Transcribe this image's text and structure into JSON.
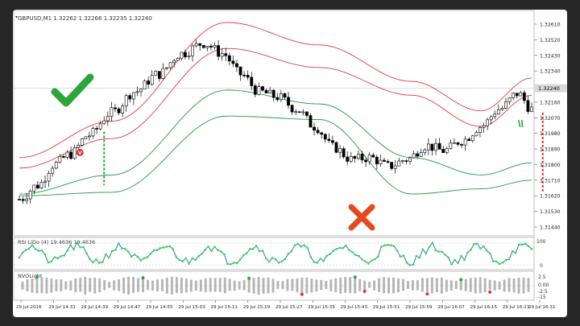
{
  "chart": {
    "symbol_title": "GBPUSD,M1  1.32262 1.32266 1.32235 1.32240",
    "current_price": "1.32240",
    "price_ticks": [
      "1.32610",
      "1.32520",
      "1.32430",
      "1.32340",
      "1.32240",
      "1.32160",
      "1.32070",
      "1.31980",
      "1.31890",
      "1.31800",
      "1.31710",
      "1.31620",
      "1.31530",
      "1.31440"
    ],
    "rsi_label": "RSI LiDo (4) 19.4636 19.4636",
    "rsi_ticks": [
      "100",
      "0"
    ],
    "nvo_label": "NVOLight",
    "nvo_ticks": [
      "2.5",
      "0.00",
      "-2.5",
      "-15"
    ],
    "time_ticks": [
      "29 Jul 2016",
      "29 Jul 14:31",
      "29 Jul 14:39",
      "29 Jul 14:47",
      "29 Jul 14:55",
      "29 Jul 15:03",
      "29 Jul 15:11",
      "29 Jul 15:19",
      "29 Jul 15:27",
      "29 Jul 15:35",
      "29 Jul 15:43",
      "29 Jul 15:51",
      "29 Jul 15:59",
      "29 Jul 16:07",
      "29 Jul 16:15",
      "29 Jul 16:23",
      "29 Jul 16:31"
    ],
    "colors": {
      "bull": "#ffffff",
      "bear": "#000000",
      "upper_band": "#e23b3b",
      "lower_band": "#1f9a3a",
      "rsi_line": "#2f6fd6",
      "rsi_dots": "#2de02d",
      "nvo_dots": "#b5b5b5",
      "check": "#2aa63a",
      "cross": "#e8481e",
      "buy_signal": "#2aa63a",
      "sell_signal": "#e03030"
    },
    "icons": {
      "buy": "check-mark-icon",
      "sell": "cross-mark-icon",
      "up_arrow": "green-arrow-icon",
      "down_arrow": "red-arrow-icon"
    }
  },
  "chart_data": {
    "type": "candlestick",
    "price_scale": [
      1.3144,
      1.3261
    ],
    "candles_count": 140,
    "close_path": [
      [
        0,
        1.316
      ],
      [
        8,
        1.3168
      ],
      [
        15,
        1.318
      ],
      [
        22,
        1.3186
      ],
      [
        30,
        1.3197
      ],
      [
        40,
        1.321
      ],
      [
        50,
        1.3222
      ],
      [
        60,
        1.3232
      ],
      [
        70,
        1.3244
      ],
      [
        80,
        1.325
      ],
      [
        88,
        1.3244
      ],
      [
        96,
        1.3232
      ],
      [
        104,
        1.3222
      ],
      [
        112,
        1.3219
      ],
      [
        120,
        1.3212
      ],
      [
        128,
        1.3202
      ],
      [
        136,
        1.319
      ],
      [
        144,
        1.3183
      ],
      [
        152,
        1.3184
      ],
      [
        160,
        1.3179
      ],
      [
        168,
        1.3183
      ],
      [
        176,
        1.3191
      ],
      [
        184,
        1.3188
      ],
      [
        192,
        1.3194
      ],
      [
        200,
        1.3202
      ],
      [
        208,
        1.3212
      ],
      [
        216,
        1.3221
      ],
      [
        222,
        1.3212
      ]
    ],
    "bands": {
      "upper_outer": [
        [
          0,
          1.3184
        ],
        [
          40,
          1.3205
        ],
        [
          90,
          1.3262
        ],
        [
          130,
          1.3249
        ],
        [
          170,
          1.3228
        ],
        [
          200,
          1.3211
        ],
        [
          222,
          1.323
        ]
      ],
      "upper_inner": [
        [
          0,
          1.3178
        ],
        [
          40,
          1.3195
        ],
        [
          90,
          1.3247
        ],
        [
          130,
          1.3236
        ],
        [
          170,
          1.322
        ],
        [
          200,
          1.3202
        ],
        [
          222,
          1.322
        ]
      ],
      "lower_inner": [
        [
          0,
          1.3163
        ],
        [
          40,
          1.3174
        ],
        [
          90,
          1.3223
        ],
        [
          130,
          1.3215
        ],
        [
          170,
          1.3184
        ],
        [
          200,
          1.3174
        ],
        [
          222,
          1.3181
        ]
      ],
      "lower_outer": [
        [
          0,
          1.3162
        ],
        [
          40,
          1.3164
        ],
        [
          90,
          1.3208
        ],
        [
          130,
          1.3206
        ],
        [
          170,
          1.3163
        ],
        [
          200,
          1.3166
        ],
        [
          222,
          1.3171
        ]
      ]
    },
    "signals": [
      {
        "type": "buy",
        "index": 23
      },
      {
        "type": "sell",
        "index": 142
      }
    ],
    "rsi_range": [
      0,
      100
    ],
    "nvo_range": [
      -15,
      2.5
    ]
  }
}
